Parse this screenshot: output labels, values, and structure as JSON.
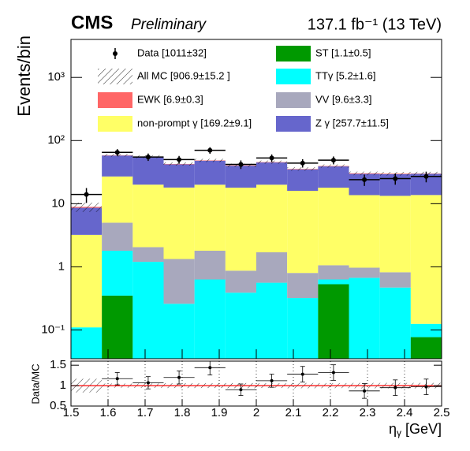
{
  "chart_data": {
    "type": "histogram",
    "title": "CMS",
    "subtitle": "Preliminary",
    "lumi": "137.1 fb⁻¹ (13 TeV)",
    "ylabel": "Events/bin",
    "xlabel": {
      "symbol": "η",
      "sub": "γ",
      "unit": " [GeV]"
    },
    "log_scale": true,
    "bins": [
      1.5,
      1.5833,
      1.6667,
      1.75,
      1.8333,
      1.9167,
      2,
      2.0833,
      2.1667,
      2.25,
      2.3333,
      2.4167,
      2.5
    ],
    "xlim": [
      1.5,
      2.5
    ],
    "xticks": [
      1.5,
      1.6,
      1.7,
      1.8,
      1.9,
      2,
      2.1,
      2.2,
      2.3,
      2.4,
      2.5
    ],
    "ylim": [
      0.035,
      4000
    ],
    "yticks": [
      {
        "value": 0.1,
        "label": "10⁻¹"
      },
      1,
      10,
      {
        "value": 100,
        "label": "10²"
      },
      {
        "value": 1000,
        "label": "10³"
      }
    ],
    "series": [
      {
        "name": "ST [1.1±0.5]",
        "color": "#009900",
        "values": [
          0,
          0.35,
          0,
          0,
          0,
          0,
          0,
          0,
          0.53,
          0,
          0,
          0.077
        ]
      },
      {
        "name": "TTγ [5.2±1.6]",
        "color": "#00ffff",
        "values": [
          0.11,
          1.45,
          1.2,
          0.26,
          0.63,
          0.39,
          0.56,
          0.32,
          0.1,
          0.67,
          0.47,
          0.048
        ]
      },
      {
        "name": "VV [9.6±3.3]",
        "color": "#a8a8bd",
        "values": [
          0,
          3.2,
          0.85,
          1.07,
          1.17,
          0.48,
          1.14,
          0.48,
          0.43,
          0.3,
          0.35,
          0
        ]
      },
      {
        "name": "non-prompt γ [169.2±9.1]",
        "color": "#ffff66",
        "values": [
          3.1,
          22,
          18,
          16.7,
          18.2,
          17.1,
          18.3,
          15.2,
          16.9,
          12.7,
          12.5,
          13.6
        ]
      },
      {
        "name": "Z γ [257.7±11.5]",
        "color": "#6666cc",
        "values": [
          5.4,
          31,
          35,
          24,
          28,
          22,
          25,
          19,
          21,
          16,
          16,
          16
        ]
      },
      {
        "name": "EWK [6.9±0.3]",
        "color": "#ff6666",
        "values": [
          0.3,
          0.6,
          0.6,
          0.6,
          0.6,
          0.6,
          0.6,
          0.6,
          0.6,
          0.6,
          0.6,
          0.3
        ]
      }
    ],
    "mc": {
      "name": "All MC [906.9±15.2 ]",
      "errors": [
        1.5,
        3,
        3,
        2.5,
        2.8,
        2.5,
        2.6,
        2.3,
        2.4,
        2,
        2,
        2
      ]
    },
    "data": {
      "name": "Data [1011±32]",
      "color": "#000000",
      "values": [
        14,
        65,
        55,
        50,
        70,
        42,
        53,
        44,
        49,
        24,
        25,
        27
      ],
      "errors": [
        3.7,
        8.1,
        7.4,
        7.1,
        8.4,
        6.5,
        7.3,
        6.6,
        7,
        4.9,
        5,
        5.2
      ]
    },
    "ratio": {
      "ylabel": "Data/MC",
      "ylim": [
        0.5,
        1.6
      ],
      "yticks": [
        0.5,
        1,
        1.5
      ],
      "reference": 1,
      "grid": true,
      "values": [
        null,
        1.17,
        1.07,
        1.2,
        1.44,
        0.9,
        1.12,
        1.28,
        1.32,
        0.87,
        0.95,
        0.97
      ],
      "errors": [
        null,
        0.15,
        0.15,
        0.16,
        0.18,
        0.14,
        0.16,
        0.19,
        0.19,
        0.18,
        0.19,
        0.19
      ]
    }
  }
}
